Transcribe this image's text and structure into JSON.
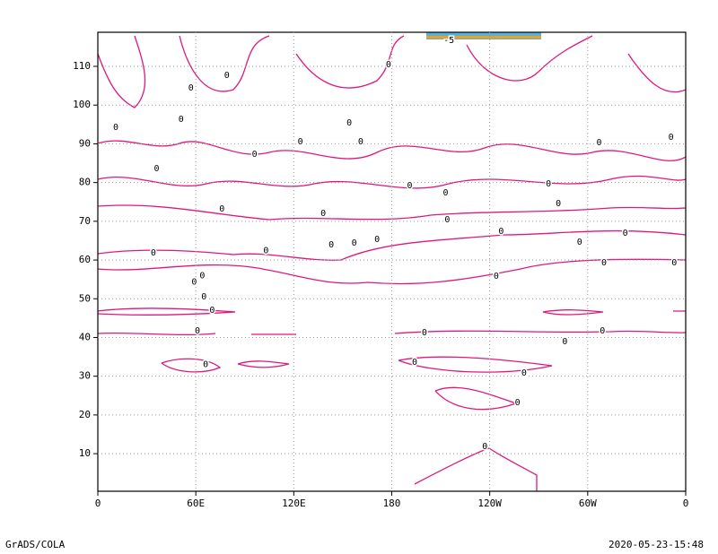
{
  "chart_data": {
    "type": "contour",
    "xlim": [
      0,
      360
    ],
    "ylim": [
      0.3,
      118.8
    ],
    "xticks": [
      {
        "value": 0,
        "label": "0"
      },
      {
        "value": 60,
        "label": "60E"
      },
      {
        "value": 120,
        "label": "120E"
      },
      180,
      {
        "value": 240,
        "label": "120W"
      },
      {
        "value": 300,
        "label": "60W"
      },
      {
        "value": 360,
        "label": "0"
      }
    ],
    "yticks": [
      10,
      20,
      30,
      40,
      50,
      60,
      70,
      80,
      90,
      100,
      110
    ],
    "grid": true,
    "color": "#e0187c",
    "contour_labels": [
      {
        "x": 34,
        "y": 61.9,
        "value": 0
      },
      {
        "x": 59,
        "y": 54.4,
        "value": 0
      },
      {
        "x": 64,
        "y": 56,
        "value": 0
      },
      {
        "x": 65,
        "y": 50.5,
        "value": 0
      },
      {
        "x": 70,
        "y": 47,
        "value": 0
      },
      {
        "x": 61,
        "y": 41.7,
        "value": 0
      },
      {
        "x": 66,
        "y": 33,
        "value": 0
      },
      {
        "x": 103,
        "y": 62.5,
        "value": 0
      },
      {
        "x": 143,
        "y": 63.9,
        "value": 0
      },
      {
        "x": 157,
        "y": 64.4,
        "value": 0
      },
      {
        "x": 171,
        "y": 65.3,
        "value": 0
      },
      {
        "x": 200,
        "y": 41.3,
        "value": 0
      },
      {
        "x": 194,
        "y": 33.6,
        "value": 0
      },
      {
        "x": 237,
        "y": 11.9,
        "value": 0
      },
      {
        "x": 257,
        "y": 23.2,
        "value": 0
      },
      {
        "x": 261,
        "y": 30.8,
        "value": 0
      },
      {
        "x": 244,
        "y": 55.8,
        "value": 0
      },
      {
        "x": 247,
        "y": 67.4,
        "value": 0
      },
      {
        "x": 286,
        "y": 38.9,
        "value": 0
      },
      {
        "x": 309,
        "y": 41.7,
        "value": 0
      },
      {
        "x": 295,
        "y": 64.6,
        "value": 0
      },
      {
        "x": 310,
        "y": 59.3,
        "value": 0
      },
      {
        "x": 323,
        "y": 66.9,
        "value": 0
      },
      {
        "x": 353,
        "y": 59.3,
        "value": 0
      },
      {
        "x": 11,
        "y": 94.3,
        "value": 0
      },
      {
        "x": 36,
        "y": 83.6,
        "value": 0
      },
      {
        "x": 51,
        "y": 96.3,
        "value": 0
      },
      {
        "x": 76,
        "y": 73.2,
        "value": 0
      },
      {
        "x": 96,
        "y": 87.3,
        "value": 0
      },
      {
        "x": 124,
        "y": 90.6,
        "value": 0
      },
      {
        "x": 138,
        "y": 72,
        "value": 0
      },
      {
        "x": 154,
        "y": 95.4,
        "value": 0
      },
      {
        "x": 161,
        "y": 90.6,
        "value": 0
      },
      {
        "x": 178,
        "y": 110.5,
        "value": 0
      },
      {
        "x": 191,
        "y": 79.2,
        "value": 0
      },
      {
        "x": 214,
        "y": 70.4,
        "value": 0
      },
      {
        "x": 213,
        "y": 77.4,
        "value": 0
      },
      {
        "x": 276,
        "y": 79.7,
        "value": 0
      },
      {
        "x": 307,
        "y": 90.3,
        "value": 0
      },
      {
        "x": 351,
        "y": 91.7,
        "value": 0
      },
      {
        "x": 79,
        "y": 107.7,
        "value": 0
      },
      {
        "x": 57,
        "y": 104.4,
        "value": 0
      },
      {
        "x": 282,
        "y": 74.6,
        "value": 0
      },
      {
        "x": 215,
        "y": 116.7,
        "value": -5
      }
    ]
  },
  "footer": {
    "left": "GrADS/COLA",
    "right": "2020-05-23-15:48"
  }
}
